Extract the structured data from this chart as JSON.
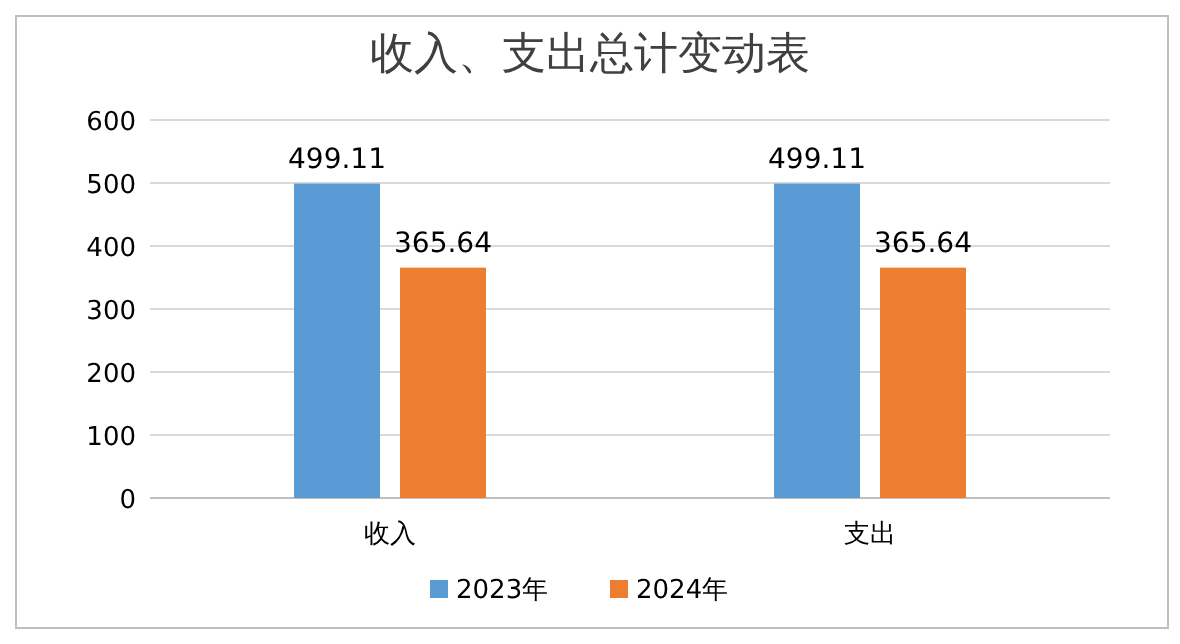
{
  "chart_data": {
    "type": "bar",
    "title": "收入、支出总计变动表",
    "categories": [
      "收入",
      "支出"
    ],
    "series": [
      {
        "name": "2023年",
        "color": "#5b9bd5",
        "values": [
          499.11,
          499.11
        ]
      },
      {
        "name": "2024年",
        "color": "#ed7d31",
        "values": [
          365.64,
          365.64
        ]
      }
    ],
    "ylim": [
      0,
      600
    ],
    "yticks": [
      0,
      100,
      200,
      300,
      400,
      500,
      600
    ],
    "grid": "y",
    "legend": "bottom",
    "data_labels": true
  }
}
